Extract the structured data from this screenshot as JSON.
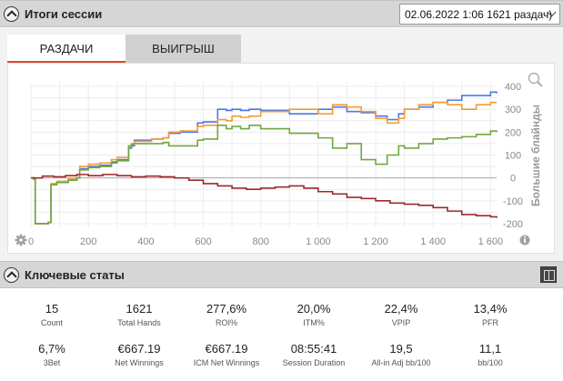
{
  "session_header": {
    "title": "Итоги сессии",
    "selected_session": "02.06.2022 1:06 1621 раздач)"
  },
  "tabs": [
    {
      "label": "РАЗДАЧИ"
    },
    {
      "label": "ВЫИГРЫШ"
    }
  ],
  "chart_data": {
    "type": "line",
    "xlabel": "Раздачи",
    "ylabel": "Большие блайнды",
    "xlim": [
      0,
      1621
    ],
    "ylim": [
      -220,
      420
    ],
    "x_ticks": [
      "0",
      "200",
      "400",
      "600",
      "800",
      "1 000",
      "1 200",
      "1 400",
      "1 600"
    ],
    "x_tick_values": [
      0,
      200,
      400,
      600,
      800,
      1000,
      1200,
      1400,
      1600
    ],
    "y_ticks": [
      "400",
      "300",
      "200",
      "100",
      "0",
      "-100",
      "-200"
    ],
    "y_tick_values": [
      400,
      300,
      200,
      100,
      0,
      -100,
      -200
    ],
    "grid": true,
    "series": [
      {
        "color": "#4a78e8",
        "x": [
          0,
          10,
          15,
          60,
          70,
          90,
          130,
          160,
          170,
          200,
          240,
          280,
          300,
          340,
          350,
          360,
          420,
          460,
          480,
          520,
          580,
          600,
          650,
          680,
          700,
          730,
          760,
          800,
          900,
          1000,
          1050,
          1100,
          1150,
          1200,
          1240,
          1280,
          1300,
          1350,
          1400,
          1450,
          1500,
          1550,
          1600,
          1621
        ],
        "y": [
          0,
          -5,
          -200,
          -195,
          -30,
          -20,
          -10,
          0,
          40,
          50,
          55,
          70,
          80,
          130,
          140,
          165,
          170,
          175,
          195,
          200,
          240,
          245,
          300,
          295,
          300,
          295,
          300,
          295,
          280,
          300,
          310,
          290,
          285,
          270,
          255,
          280,
          300,
          310,
          330,
          340,
          360,
          360,
          375,
          370
        ]
      },
      {
        "color": "#f39c34",
        "x": [
          0,
          10,
          15,
          60,
          70,
          90,
          130,
          160,
          170,
          200,
          240,
          280,
          300,
          340,
          350,
          360,
          420,
          460,
          480,
          520,
          580,
          600,
          650,
          680,
          700,
          730,
          760,
          800,
          900,
          1000,
          1050,
          1100,
          1150,
          1200,
          1240,
          1280,
          1300,
          1350,
          1400,
          1450,
          1500,
          1550,
          1600,
          1621
        ],
        "y": [
          0,
          -5,
          -200,
          -195,
          -25,
          -15,
          -5,
          0,
          50,
          60,
          65,
          80,
          90,
          140,
          150,
          160,
          170,
          175,
          200,
          205,
          225,
          230,
          255,
          250,
          270,
          265,
          270,
          290,
          300,
          280,
          320,
          310,
          290,
          260,
          240,
          260,
          300,
          320,
          330,
          320,
          300,
          320,
          330,
          330
        ]
      },
      {
        "color": "#6fa83f",
        "x": [
          0,
          10,
          15,
          60,
          70,
          90,
          130,
          160,
          170,
          200,
          240,
          280,
          300,
          340,
          350,
          360,
          420,
          460,
          480,
          520,
          580,
          600,
          650,
          680,
          700,
          730,
          760,
          800,
          900,
          1000,
          1050,
          1100,
          1150,
          1200,
          1240,
          1280,
          1300,
          1350,
          1400,
          1450,
          1500,
          1550,
          1600,
          1621
        ],
        "y": [
          0,
          -5,
          -200,
          -195,
          -30,
          -20,
          -10,
          0,
          35,
          45,
          50,
          65,
          75,
          140,
          145,
          150,
          150,
          155,
          140,
          140,
          165,
          170,
          230,
          215,
          225,
          215,
          230,
          215,
          195,
          175,
          130,
          150,
          80,
          60,
          100,
          140,
          130,
          150,
          170,
          175,
          180,
          190,
          205,
          200
        ]
      },
      {
        "color": "#9c2b2b",
        "x": [
          0,
          40,
          80,
          120,
          160,
          200,
          250,
          300,
          350,
          400,
          450,
          500,
          550,
          600,
          650,
          700,
          750,
          800,
          850,
          900,
          950,
          1000,
          1050,
          1100,
          1150,
          1200,
          1250,
          1300,
          1350,
          1400,
          1450,
          1500,
          1550,
          1600,
          1621
        ],
        "y": [
          0,
          8,
          5,
          10,
          15,
          10,
          15,
          10,
          5,
          8,
          5,
          0,
          -10,
          -25,
          -35,
          -45,
          -50,
          -45,
          -40,
          -35,
          -45,
          -60,
          -70,
          -85,
          -90,
          -100,
          -110,
          -115,
          -120,
          -130,
          -145,
          -160,
          -165,
          -170,
          -175
        ]
      }
    ]
  },
  "stats_header": {
    "title": "Ключевые статы"
  },
  "stats": [
    {
      "value": "15",
      "label": "Count"
    },
    {
      "value": "1621",
      "label": "Total Hands"
    },
    {
      "value": "277,6%",
      "label": "ROI%"
    },
    {
      "value": "20,0%",
      "label": "ITM%"
    },
    {
      "value": "22,4%",
      "label": "VPIP"
    },
    {
      "value": "13,4%",
      "label": "PFR"
    },
    {
      "value": "6,7%",
      "label": "3Bet"
    },
    {
      "value": "€667.19",
      "label": "Net Winnings"
    },
    {
      "value": "€667.19",
      "label": "ICM Net Winnings"
    },
    {
      "value": "08:55:41",
      "label": "Session Duration"
    },
    {
      "value": "19,5",
      "label": "All-in Adj bb/100"
    },
    {
      "value": "11,1",
      "label": "bb/100"
    }
  ],
  "icons": {
    "zoom": "magnifier-icon",
    "settings": "gear-icon",
    "info": "info-icon",
    "collapse": "chevron-up-circle-icon",
    "dropdown": "chevron-down-icon",
    "panel_toggle": "panel-toggle-icon"
  }
}
